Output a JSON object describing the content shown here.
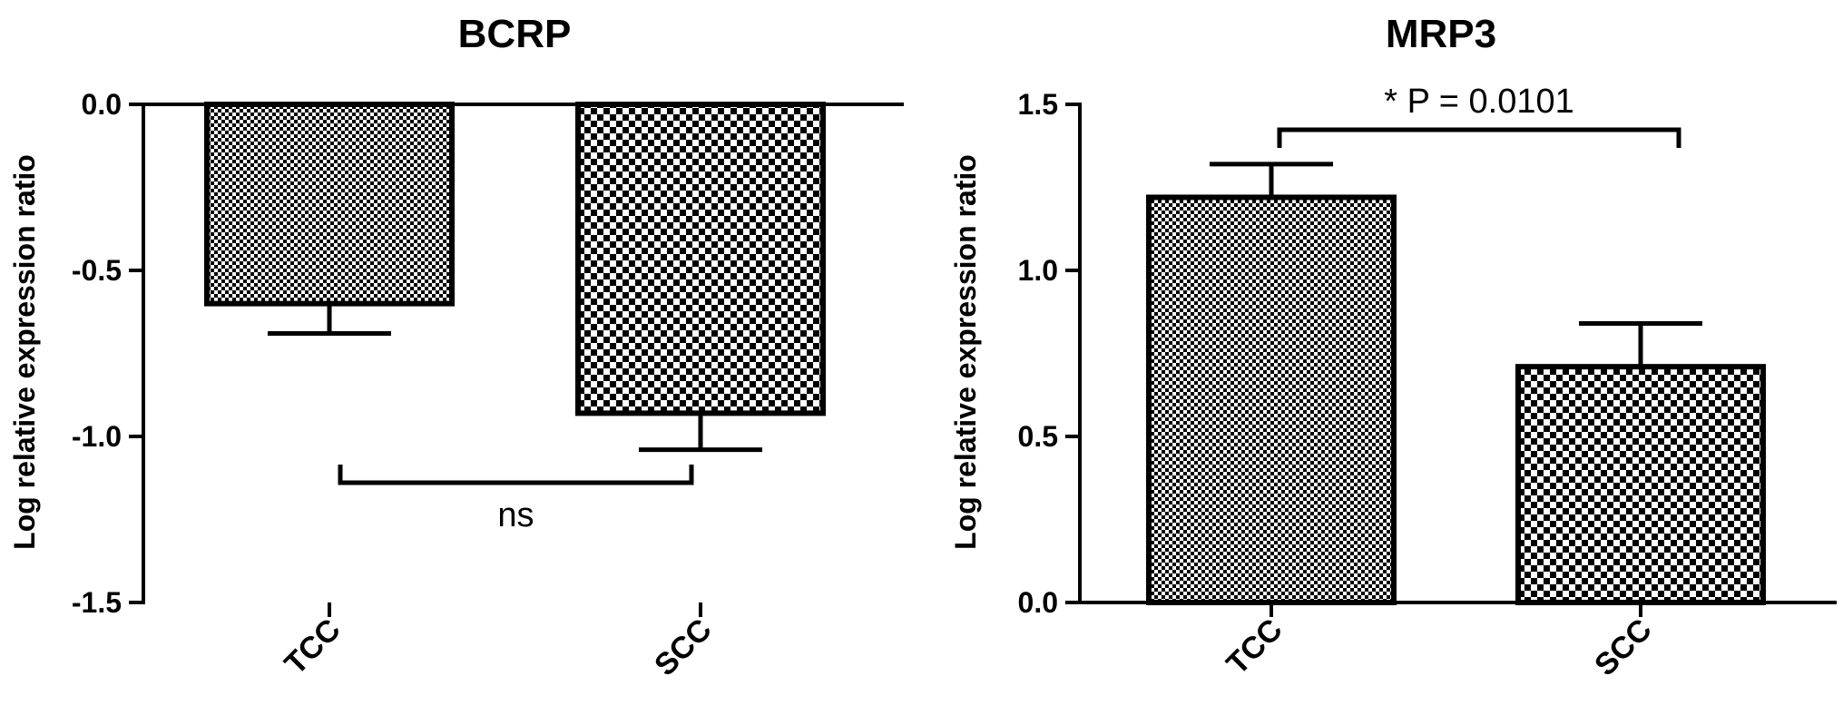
{
  "chart_data": [
    {
      "type": "bar",
      "title": "BCRP",
      "ylabel": "Log relative expression ratio",
      "ylim": [
        -1.5,
        0.0
      ],
      "yticks": [
        0.0,
        -0.5,
        -1.0,
        -1.5
      ],
      "ytick_labels": [
        "0.0",
        "-0.5",
        "-1.0",
        "-1.5"
      ],
      "categories": [
        "TCC",
        "SCC"
      ],
      "values": [
        -0.6,
        -0.93
      ],
      "errors": [
        0.09,
        0.11
      ],
      "pattern": [
        "fine-checker",
        "coarse-checker"
      ],
      "annotation": {
        "text": "ns",
        "between": [
          "TCC",
          "SCC"
        ]
      }
    },
    {
      "type": "bar",
      "title": "MRP3",
      "ylabel": "Log relative expression ratio",
      "ylim": [
        0.0,
        1.5
      ],
      "yticks": [
        0.0,
        0.5,
        1.0,
        1.5
      ],
      "ytick_labels": [
        "0.0",
        "0.5",
        "1.0",
        "1.5"
      ],
      "categories": [
        "TCC",
        "SCC"
      ],
      "values": [
        1.22,
        0.71
      ],
      "errors": [
        0.1,
        0.13
      ],
      "pattern": [
        "fine-checker",
        "coarse-checker"
      ],
      "annotation": {
        "text": "* P = 0.0101",
        "between": [
          "TCC",
          "SCC"
        ]
      }
    }
  ]
}
